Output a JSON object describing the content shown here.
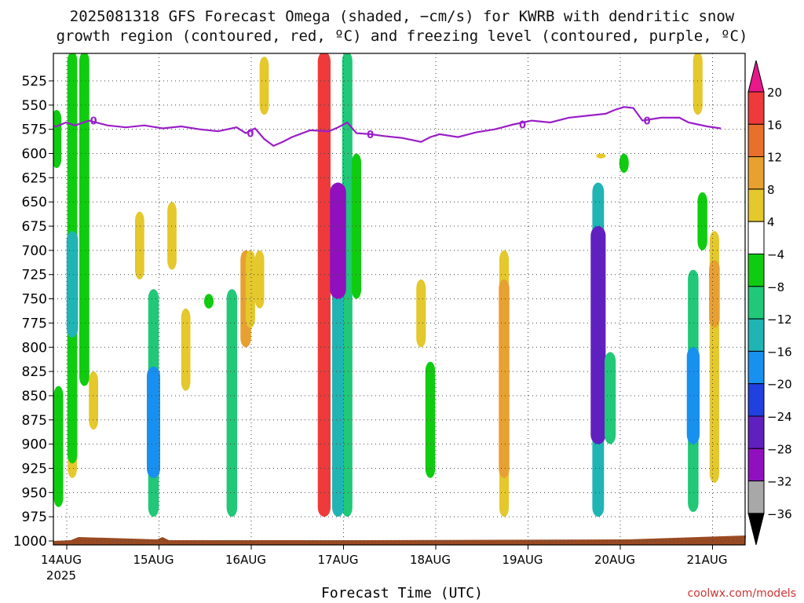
{
  "title_line1": "2025081318 GFS Forecast Omega (shaded, −cm/s) for KWRB with dendritic snow",
  "title_line2": "growth region (contoured, red, ºC) and freezing level (contoured, purple, ºC)",
  "xlabel": "Forecast Time (UTC)",
  "credit": "coolwx.com/models",
  "chart_data": {
    "type": "heatmap",
    "xlabel": "Forecast Time (UTC)",
    "ylabel": "",
    "x_tick_labels": [
      "14AUG",
      "15AUG",
      "16AUG",
      "17AUG",
      "18AUG",
      "19AUG",
      "20AUG",
      "21AUG"
    ],
    "x_tick_sublabel": "2025",
    "x_range_days": [
      -0.25,
      7.15
    ],
    "y_tick_labels": [
      525,
      550,
      575,
      600,
      625,
      650,
      675,
      700,
      725,
      750,
      775,
      800,
      825,
      850,
      875,
      900,
      925,
      950,
      975,
      1000
    ],
    "y_range_hpa": [
      500,
      1005
    ],
    "y_scale": "pressure",
    "grid": true,
    "colorbar": {
      "levels": [
        20,
        16,
        12,
        8,
        4,
        -4,
        -8,
        -12,
        -16,
        -20,
        -24,
        -28,
        -32,
        -36
      ],
      "colors": [
        "#e8178a",
        "#ee3a3a",
        "#e8702a",
        "#e8a030",
        "#e4c82c",
        "#ffffff",
        "#10cc10",
        "#20c878",
        "#20b4b4",
        "#1890f0",
        "#2040e0",
        "#6020c0",
        "#9010c0",
        "#a8a8a8",
        "#000000"
      ]
    },
    "freezing_level_label": "0",
    "freezing_level": {
      "x_days": [
        -0.25,
        -0.15,
        -0.05,
        0.05,
        0.15,
        0.3,
        0.5,
        0.7,
        0.9,
        1.1,
        1.3,
        1.5,
        1.7,
        1.9,
        2.0,
        2.1,
        2.2,
        2.3,
        2.4,
        2.5,
        2.7,
        2.9,
        3.0,
        3.1,
        3.2,
        3.35,
        3.5,
        3.7,
        3.9,
        4.0,
        4.1,
        4.3,
        4.5,
        4.7,
        4.9,
        5.1,
        5.3,
        5.5,
        5.7,
        5.9,
        6.0,
        6.1,
        6.2,
        6.3,
        6.5,
        6.7,
        6.8,
        6.9,
        7.0,
        7.15
      ],
      "p_hpa": [
        574,
        571,
        572,
        568,
        571,
        566,
        571,
        573,
        571,
        574,
        572,
        575,
        577,
        573,
        579,
        574,
        585,
        592,
        588,
        583,
        576,
        577,
        573,
        568,
        579,
        580,
        582,
        584,
        588,
        583,
        580,
        583,
        578,
        575,
        570,
        566,
        568,
        563,
        561,
        559,
        555,
        552,
        553,
        566,
        563,
        563,
        568,
        570,
        572,
        574
      ]
    },
    "omega_blobs": [
      {
        "x": -0.05,
        "p_top": 555,
        "p_bot": 615,
        "omega": -6
      },
      {
        "x": -0.03,
        "p_top": 840,
        "p_bot": 965,
        "omega": -6
      },
      {
        "x": 0.12,
        "p_top": 680,
        "p_bot": 935,
        "omega": 5
      },
      {
        "x": 0.12,
        "p_top": 495,
        "p_bot": 920,
        "omega": -8
      },
      {
        "x": 0.12,
        "p_top": 680,
        "p_bot": 790,
        "omega": -13
      },
      {
        "x": 0.25,
        "p_top": 495,
        "p_bot": 840,
        "omega": -8
      },
      {
        "x": 0.35,
        "p_top": 825,
        "p_bot": 885,
        "omega": 5
      },
      {
        "x": 0.85,
        "p_top": 660,
        "p_bot": 730,
        "omega": 5
      },
      {
        "x": 1.0,
        "p_top": 740,
        "p_bot": 975,
        "omega": -10
      },
      {
        "x": 1.0,
        "p_top": 820,
        "p_bot": 935,
        "omega": -20
      },
      {
        "x": 1.2,
        "p_top": 650,
        "p_bot": 720,
        "omega": 5
      },
      {
        "x": 1.35,
        "p_top": 760,
        "p_bot": 845,
        "omega": 5
      },
      {
        "x": 1.6,
        "p_top": 745,
        "p_bot": 760,
        "omega": -6
      },
      {
        "x": 1.85,
        "p_top": 740,
        "p_bot": 975,
        "omega": -10
      },
      {
        "x": 2.0,
        "p_top": 700,
        "p_bot": 800,
        "omega": 10
      },
      {
        "x": 2.05,
        "p_top": 700,
        "p_bot": 780,
        "omega": 6
      },
      {
        "x": 2.15,
        "p_top": 700,
        "p_bot": 760,
        "omega": 5
      },
      {
        "x": 2.2,
        "p_top": 500,
        "p_bot": 560,
        "omega": 5
      },
      {
        "x": 2.85,
        "p_top": 495,
        "p_bot": 975,
        "omega": 18
      },
      {
        "x": 3.1,
        "p_top": 495,
        "p_bot": 975,
        "omega": -9
      },
      {
        "x": 3.0,
        "p_top": 630,
        "p_bot": 975,
        "omega": -14
      },
      {
        "x": 3.0,
        "p_top": 630,
        "p_bot": 750,
        "omega": -30
      },
      {
        "x": 3.2,
        "p_top": 600,
        "p_bot": 750,
        "omega": -6
      },
      {
        "x": 3.9,
        "p_top": 730,
        "p_bot": 800,
        "omega": 6
      },
      {
        "x": 4.0,
        "p_top": 815,
        "p_bot": 935,
        "omega": -7
      },
      {
        "x": 4.8,
        "p_top": 700,
        "p_bot": 975,
        "omega": 6
      },
      {
        "x": 4.8,
        "p_top": 730,
        "p_bot": 935,
        "omega": 10
      },
      {
        "x": 5.82,
        "p_top": 630,
        "p_bot": 975,
        "omega": -14
      },
      {
        "x": 5.82,
        "p_top": 675,
        "p_bot": 900,
        "omega": -26
      },
      {
        "x": 5.95,
        "p_top": 805,
        "p_bot": 900,
        "omega": -12
      },
      {
        "x": 5.85,
        "p_top": 600,
        "p_bot": 605,
        "omega": 6
      },
      {
        "x": 6.1,
        "p_top": 600,
        "p_bot": 620,
        "omega": -6
      },
      {
        "x": 6.85,
        "p_top": 720,
        "p_bot": 970,
        "omega": -10
      },
      {
        "x": 6.85,
        "p_top": 800,
        "p_bot": 900,
        "omega": -18
      },
      {
        "x": 6.9,
        "p_top": 495,
        "p_bot": 560,
        "omega": 6
      },
      {
        "x": 6.95,
        "p_top": 640,
        "p_bot": 700,
        "omega": -7
      },
      {
        "x": 7.08,
        "p_top": 680,
        "p_bot": 940,
        "omega": 6
      },
      {
        "x": 7.08,
        "p_top": 710,
        "p_bot": 780,
        "omega": 10
      }
    ]
  }
}
